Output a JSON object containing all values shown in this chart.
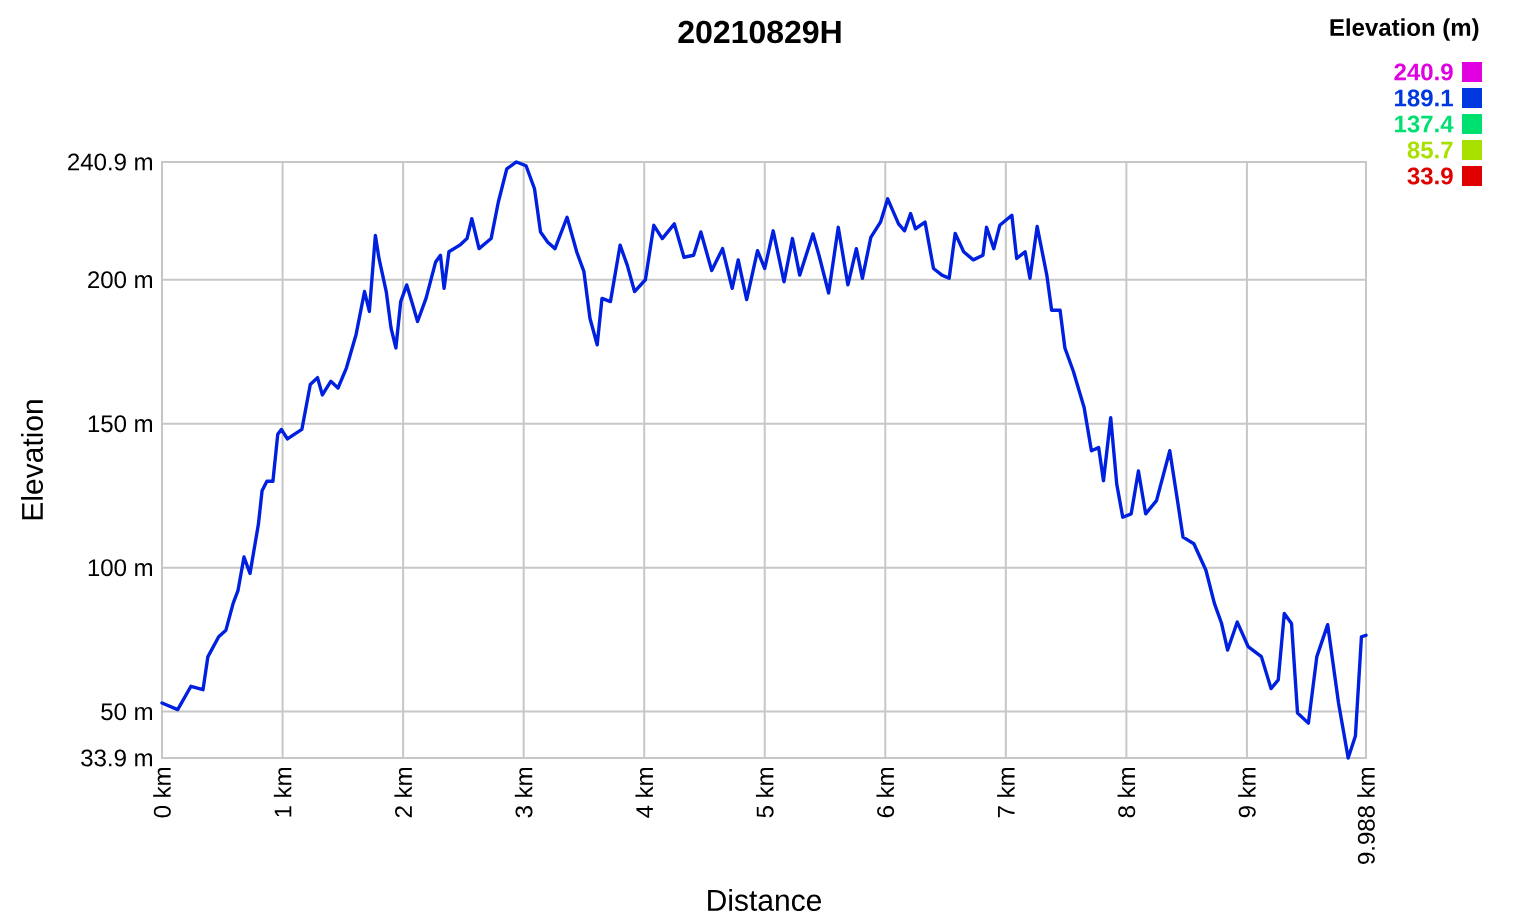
{
  "chart_data": {
    "type": "line",
    "title": "20210829H",
    "xlabel": "Distance",
    "ylabel": "Elevation",
    "clabel": "Elevation (m)",
    "clim": [
      33.9,
      240.9
    ],
    "cticks": [
      240.9,
      189.1,
      137.4,
      85.7,
      33.9
    ],
    "x": [
      0,
      0.13,
      0.24,
      0.34,
      0.38,
      0.47,
      0.53,
      0.59,
      0.63,
      0.68,
      0.73,
      0.8,
      0.83,
      0.87,
      0.92,
      0.96,
      0.99,
      1.04,
      1.16,
      1.23,
      1.29,
      1.33,
      1.4,
      1.46,
      1.53,
      1.61,
      1.68,
      1.72,
      1.77,
      1.8,
      1.86,
      1.9,
      1.94,
      1.98,
      2.03,
      2.08,
      2.12,
      2.19,
      2.27,
      2.31,
      2.34,
      2.38,
      2.47,
      2.53,
      2.57,
      2.63,
      2.73,
      2.79,
      2.86,
      2.94,
      3.02,
      3.09,
      3.14,
      3.2,
      3.26,
      3.36,
      3.44,
      3.5,
      3.55,
      3.61,
      3.65,
      3.72,
      3.8,
      3.86,
      3.92,
      4.01,
      4.08,
      4.15,
      4.25,
      4.33,
      4.41,
      4.47,
      4.56,
      4.65,
      4.73,
      4.78,
      4.85,
      4.94,
      5.0,
      5.07,
      5.16,
      5.23,
      5.29,
      5.4,
      5.45,
      5.53,
      5.61,
      5.69,
      5.76,
      5.81,
      5.88,
      5.96,
      6.02,
      6.11,
      6.16,
      6.21,
      6.25,
      6.33,
      6.4,
      6.47,
      6.53,
      6.58,
      6.65,
      6.73,
      6.81,
      6.84,
      6.9,
      6.95,
      7.05,
      7.09,
      7.16,
      7.2,
      7.26,
      7.34,
      7.38,
      7.45,
      7.49,
      7.56,
      7.65,
      7.71,
      7.77,
      7.81,
      7.87,
      7.92,
      7.97,
      8.04,
      8.1,
      8.16,
      8.25,
      8.36,
      8.42,
      8.47,
      8.56,
      8.66,
      8.73,
      8.79,
      8.84,
      8.92,
      9.01,
      9.12,
      9.2,
      9.26,
      9.31,
      9.37,
      9.42,
      9.51,
      9.58,
      9.67,
      9.76,
      9.84,
      9.9,
      9.95,
      9.988
    ],
    "values": [
      53,
      50.7,
      58.8,
      57.6,
      69,
      76,
      78.3,
      87.6,
      92,
      103.7,
      98,
      115.2,
      126.7,
      130,
      130,
      146.3,
      148,
      144.7,
      148,
      163.6,
      166,
      160,
      164.7,
      162.4,
      169.4,
      181,
      195.9,
      189,
      215.4,
      207.4,
      195.9,
      183.2,
      176.3,
      192.4,
      198.2,
      191.2,
      185.5,
      193.5,
      206.2,
      208.5,
      197,
      209.7,
      212,
      214.3,
      221.2,
      210.8,
      214.3,
      227,
      238.5,
      240.9,
      239.6,
      231.6,
      216.6,
      213,
      210.8,
      221.7,
      209.7,
      202.8,
      186.6,
      177.4,
      193.5,
      192.4,
      212,
      205,
      195.9,
      200,
      218.9,
      214.3,
      219.4,
      207.8,
      208.5,
      216.6,
      203.2,
      210.8,
      197,
      206.9,
      193.1,
      210.1,
      203.9,
      217,
      199.3,
      214.3,
      201.6,
      215.9,
      208.5,
      195.4,
      218.2,
      198.2,
      210.8,
      200.5,
      214.7,
      220,
      228.1,
      219.4,
      217,
      223,
      217.7,
      220,
      203.9,
      201.6,
      200.5,
      216.1,
      209.7,
      206.9,
      208.5,
      218.2,
      210.8,
      218.9,
      222.4,
      207.4,
      209.7,
      200.5,
      218.5,
      201.6,
      189.4,
      189.4,
      176.3,
      168.2,
      155.5,
      140.6,
      141.7,
      130.2,
      152.1,
      129,
      117.5,
      118.7,
      133.6,
      118.7,
      123.3,
      140.6,
      124.4,
      110.6,
      108.3,
      99.1,
      87.6,
      80.6,
      71.4,
      81.1,
      72.6,
      69.1,
      58,
      61,
      84.1,
      80.6,
      49.5,
      46,
      69.1,
      80.2,
      53,
      33.9,
      41.5,
      76,
      76.5
    ],
    "xlim": [
      0,
      9.988
    ],
    "ylim": [
      33.9,
      240.9
    ],
    "xticks": [
      {
        "value": 0,
        "label": "0 km"
      },
      {
        "value": 1,
        "label": "1 km"
      },
      {
        "value": 2,
        "label": "2 km"
      },
      {
        "value": 3,
        "label": "3 km"
      },
      {
        "value": 4,
        "label": "4 km"
      },
      {
        "value": 5,
        "label": "5 km"
      },
      {
        "value": 6,
        "label": "6 km"
      },
      {
        "value": 7,
        "label": "7 km"
      },
      {
        "value": 8,
        "label": "8 km"
      },
      {
        "value": 9,
        "label": "9 km"
      },
      {
        "value": 9.988,
        "label": "9.988 km"
      }
    ],
    "yticks": [
      {
        "value": 33.9,
        "label": "33.9 m"
      },
      {
        "value": 50,
        "label": "50 m"
      },
      {
        "value": 100,
        "label": "100 m"
      },
      {
        "value": 150,
        "label": "150 m"
      },
      {
        "value": 200,
        "label": "200 m"
      },
      {
        "value": 240.9,
        "label": "240.9 m"
      }
    ],
    "grid": true
  }
}
